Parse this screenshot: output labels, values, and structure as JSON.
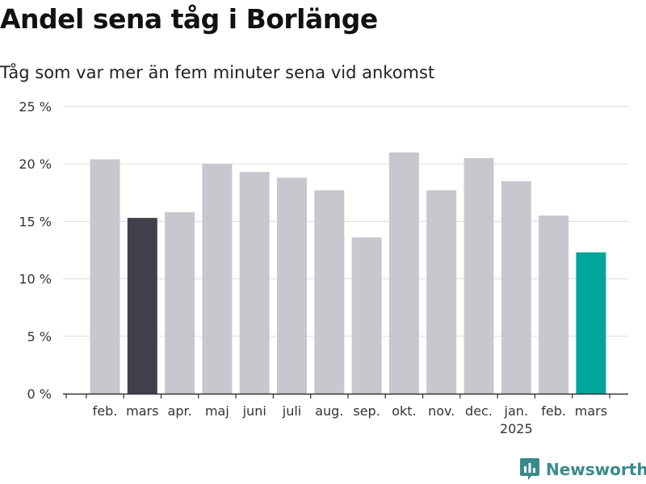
{
  "brand": {
    "name": "Newsworthy",
    "color": "#3a8a8c"
  },
  "chart_data": {
    "type": "bar",
    "title": "Andel sena tåg i Borlänge",
    "subtitle": "Tåg som var mer än fem minuter sena vid ankomst",
    "categories": [
      "feb.",
      "mars",
      "apr.",
      "maj",
      "juni",
      "juli",
      "aug.",
      "sep.",
      "okt.",
      "nov.",
      "dec.",
      "jan.",
      "feb.",
      "mars"
    ],
    "year_labels": [
      "",
      "",
      "",
      "",
      "",
      "",
      "",
      "",
      "",
      "",
      "",
      "2025",
      "",
      ""
    ],
    "values": [
      20.4,
      15.3,
      15.8,
      20.0,
      19.3,
      18.8,
      17.7,
      13.6,
      21.0,
      17.7,
      20.5,
      18.5,
      15.5,
      12.3
    ],
    "highlight": {
      "1": "#42404d",
      "13": "#00a59c"
    },
    "default_color": "#c8c7ce",
    "ylim": [
      0,
      25
    ],
    "yticks": [
      0,
      5,
      10,
      15,
      20,
      25
    ],
    "ytick_labels": [
      "0 %",
      "5 %",
      "10 %",
      "15 %",
      "20 %",
      "25 %"
    ],
    "grid": true
  }
}
